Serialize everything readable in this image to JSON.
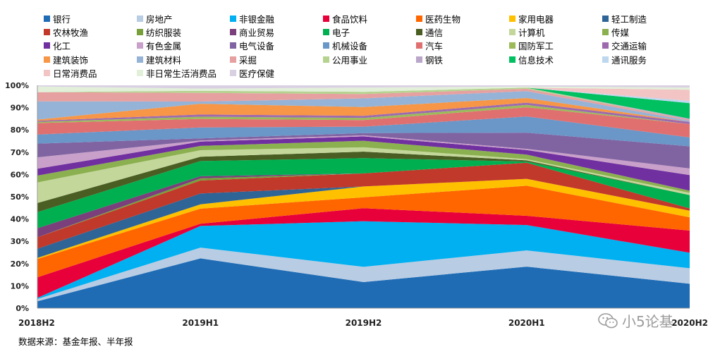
{
  "chart_data": {
    "type": "area",
    "stacked": true,
    "percent": true,
    "categories": [
      "2018H2",
      "2019H1",
      "2019H2",
      "2020H1",
      "2020H2"
    ],
    "y_ticks": [
      "0%",
      "10%",
      "20%",
      "30%",
      "40%",
      "50%",
      "60%",
      "70%",
      "80%",
      "90%",
      "100%"
    ],
    "ylim": [
      0,
      100
    ],
    "legend_position": "top",
    "series": [
      {
        "name": "银行",
        "color": "#1F6CB5",
        "values": [
          3,
          23,
          12,
          18,
          11
        ]
      },
      {
        "name": "房地产",
        "color": "#B8CCE4",
        "values": [
          1,
          5,
          7,
          7,
          7
        ]
      },
      {
        "name": "非银金融",
        "color": "#00B0F0",
        "values": [
          0.5,
          10,
          21,
          11,
          7
        ]
      },
      {
        "name": "食品饮料",
        "color": "#E8003A",
        "values": [
          9,
          1,
          6,
          4,
          10
        ]
      },
      {
        "name": "医药生物",
        "color": "#FF6600",
        "values": [
          8,
          7,
          5,
          13,
          6
        ]
      },
      {
        "name": "家用电器",
        "color": "#FFC000",
        "values": [
          0.5,
          2,
          5,
          3,
          3
        ]
      },
      {
        "name": "轻工制造",
        "color": "#2E6496",
        "values": [
          4,
          5,
          0,
          0,
          0
        ]
      },
      {
        "name": "农林牧渔",
        "color": "#C0392B",
        "values": [
          5,
          6,
          6,
          7,
          1
        ]
      },
      {
        "name": "纺织服装",
        "color": "#77A03A",
        "values": [
          0,
          1,
          0,
          0,
          0
        ]
      },
      {
        "name": "商业贸易",
        "color": "#7B3F7B",
        "values": [
          4,
          1,
          0,
          0,
          0
        ]
      },
      {
        "name": "电子",
        "color": "#00B050",
        "values": [
          7,
          7,
          7,
          0.5,
          6
        ]
      },
      {
        "name": "通信",
        "color": "#4A5E23",
        "values": [
          4,
          2,
          3,
          0.5,
          0
        ]
      },
      {
        "name": "计算机",
        "color": "#C4D79B",
        "values": [
          9,
          3,
          2,
          0.5,
          1
        ]
      },
      {
        "name": "传媒",
        "color": "#8BB04F",
        "values": [
          3,
          2,
          3,
          2,
          1
        ]
      },
      {
        "name": "化工",
        "color": "#7030A0",
        "values": [
          3,
          2,
          2,
          2,
          7
        ]
      },
      {
        "name": "有色金属",
        "color": "#C9A0C9",
        "values": [
          5,
          0.5,
          0.5,
          0.5,
          3
        ]
      },
      {
        "name": "电气设备",
        "color": "#8064A2",
        "values": [
          6,
          1,
          1,
          7,
          10
        ]
      },
      {
        "name": "机械设备",
        "color": "#6A96C8",
        "values": [
          4,
          5,
          3,
          7,
          4
        ]
      },
      {
        "name": "汽车",
        "color": "#E07070",
        "values": [
          5,
          4,
          3,
          4,
          6
        ]
      },
      {
        "name": "国防军工",
        "color": "#9BBB59",
        "values": [
          0.5,
          1,
          1,
          1,
          0
        ]
      },
      {
        "name": "交通运输",
        "color": "#9E6AAE",
        "values": [
          0.5,
          1,
          1,
          1,
          1
        ]
      },
      {
        "name": "建筑装饰",
        "color": "#F79646",
        "values": [
          0.5,
          5,
          4,
          2,
          0
        ]
      },
      {
        "name": "建筑材料",
        "color": "#95B3D7",
        "values": [
          8,
          1,
          4,
          3,
          0.5
        ]
      },
      {
        "name": "采掘",
        "color": "#E6A0A0",
        "values": [
          4,
          4,
          2,
          1,
          0.5
        ]
      },
      {
        "name": "公用事业",
        "color": "#B5D38F",
        "values": [
          0,
          1,
          1,
          0.5,
          0
        ]
      },
      {
        "name": "钢铁",
        "color": "#B9A6C9",
        "values": [
          0,
          0,
          0,
          0,
          0.5
        ]
      },
      {
        "name": "信息技术",
        "color": "#00C060",
        "values": [
          0,
          0,
          0,
          0,
          7
        ]
      },
      {
        "name": "通讯服务",
        "color": "#BDD7EE",
        "values": [
          0,
          0,
          0,
          0,
          1
        ]
      },
      {
        "name": "日常消费品",
        "color": "#F2C4C4",
        "values": [
          0,
          0,
          0,
          0,
          5
        ]
      },
      {
        "name": "非日常生活消费品",
        "color": "#E2EFD9",
        "values": [
          2.5,
          1,
          2,
          0.5,
          1
        ]
      },
      {
        "name": "医疗保健",
        "color": "#D9D0E2",
        "values": [
          0.5,
          1.5,
          1,
          0.5,
          1
        ]
      }
    ]
  },
  "source_note": "数据来源：基金年报、半年报",
  "watermark_text": "小5论基"
}
